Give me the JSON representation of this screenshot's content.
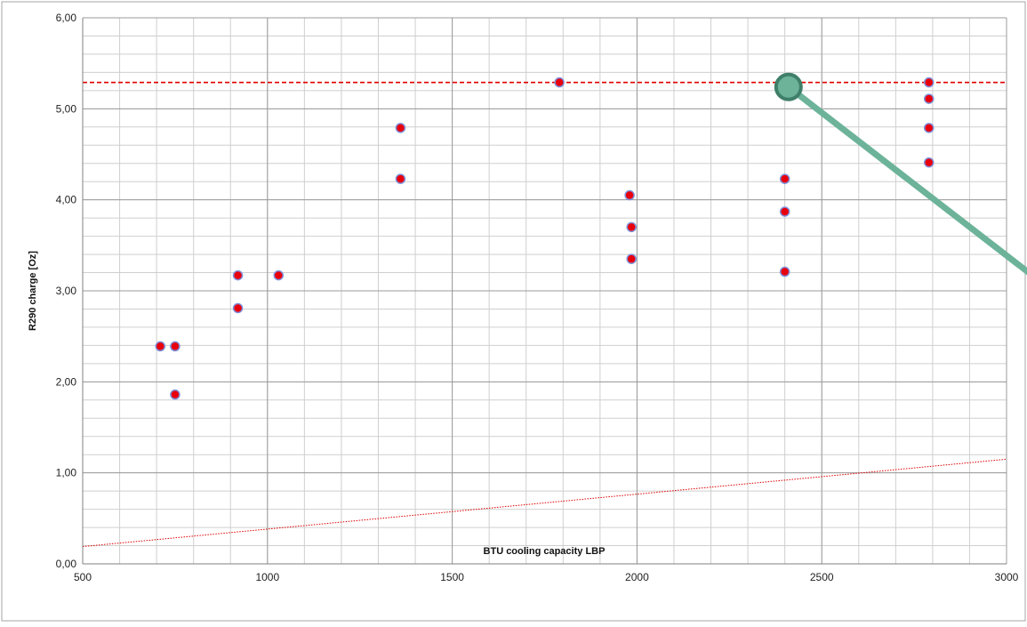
{
  "chart_data": {
    "type": "scatter",
    "title": "",
    "xlabel": "BTU cooling capacity LBP",
    "ylabel": "R290 charge [Oz]",
    "xlim": [
      500,
      3000
    ],
    "ylim": [
      0,
      6
    ],
    "x_ticks": [
      500,
      1000,
      1500,
      2000,
      2500,
      3000
    ],
    "x_tick_labels": [
      "500",
      "1000",
      "1500",
      "2000",
      "2500",
      "3000"
    ],
    "y_ticks": [
      0,
      1,
      2,
      3,
      4,
      5,
      6
    ],
    "y_tick_labels": [
      "0,00",
      "1,00",
      "2,00",
      "3,00",
      "4,00",
      "5,00",
      "6,00"
    ],
    "grid": true,
    "minor_grid": true,
    "legend": "none",
    "series": [
      {
        "points": [
          {
            "x": 710,
            "y": 2.39
          },
          {
            "x": 750,
            "y": 2.39
          },
          {
            "x": 750,
            "y": 1.86
          },
          {
            "x": 920,
            "y": 3.17
          },
          {
            "x": 920,
            "y": 2.81
          },
          {
            "x": 1030,
            "y": 3.17
          },
          {
            "x": 1360,
            "y": 4.79
          },
          {
            "x": 1360,
            "y": 4.23
          },
          {
            "x": 1790,
            "y": 5.29
          },
          {
            "x": 1980,
            "y": 4.05
          },
          {
            "x": 1985,
            "y": 3.7
          },
          {
            "x": 1985,
            "y": 3.35
          },
          {
            "x": 2400,
            "y": 4.23
          },
          {
            "x": 2400,
            "y": 3.87
          },
          {
            "x": 2400,
            "y": 3.21
          },
          {
            "x": 2790,
            "y": 5.29
          },
          {
            "x": 2790,
            "y": 5.11
          },
          {
            "x": 2790,
            "y": 4.79
          },
          {
            "x": 2790,
            "y": 4.41
          }
        ]
      }
    ],
    "reference_lines": [
      {
        "kind": "horizontal",
        "y": 5.29,
        "style": "dashed"
      },
      {
        "kind": "trend",
        "from": {
          "x": 500,
          "y": 0.19
        },
        "to": {
          "x": 3000,
          "y": 1.15
        },
        "style": "dotted"
      }
    ],
    "annotation_marker": {
      "from": {
        "x": 2410,
        "y": 5.24
      },
      "to": {
        "x": 3060,
        "y": 3.2
      }
    },
    "colors": {
      "point_fill": "#e8000b",
      "point_stroke": "#7f8fd9",
      "reference_line": "#e00000",
      "trend_line": "#e00000",
      "grid_major": "#9b9b9b",
      "grid_minor": "#cfcfcf",
      "annotation": "#6cb39a",
      "annotation_stroke": "#3f7f69",
      "frame": "#a6a6a6"
    }
  }
}
